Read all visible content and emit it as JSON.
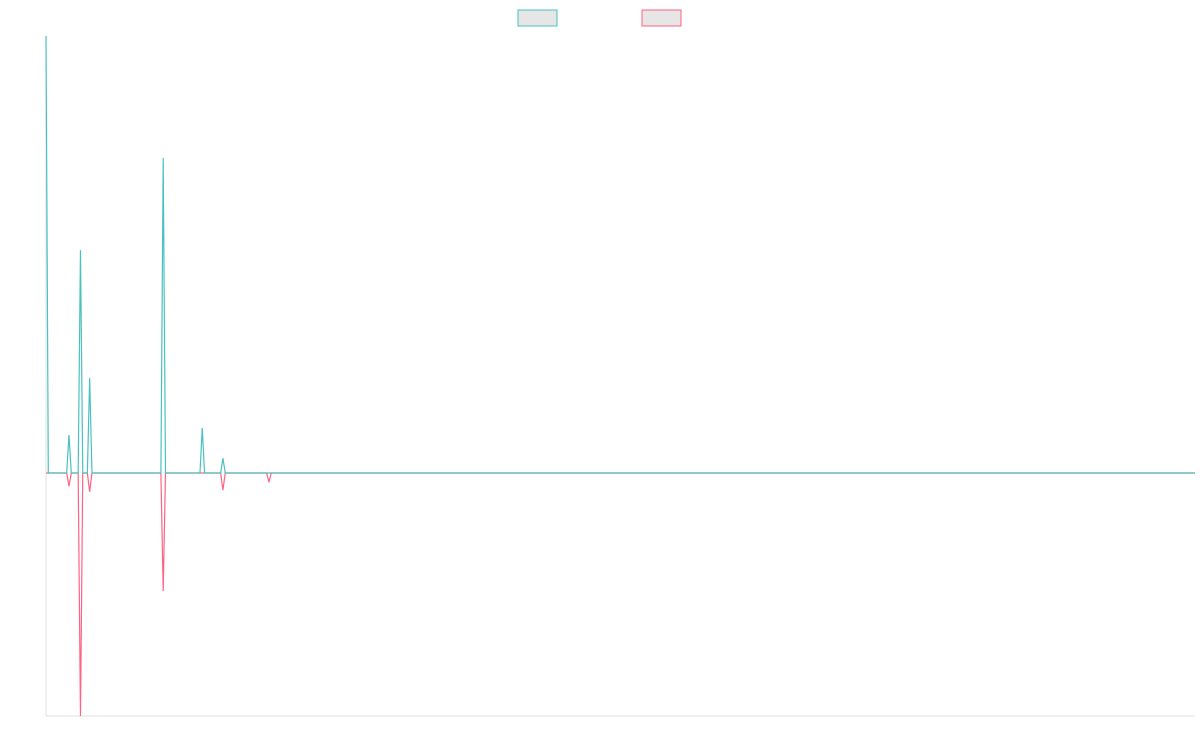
{
  "chart_data": {
    "type": "line",
    "legend": "top",
    "xlim": [
      0,
      500
    ],
    "ylim": [
      -55.6,
      100
    ],
    "series": [
      {
        "color": "#4bc0c0",
        "x": [
          0,
          1,
          9,
          10,
          11,
          14,
          15,
          16,
          18,
          19,
          20,
          50,
          51,
          52,
          67,
          68,
          69,
          76,
          77,
          78,
          500
        ],
        "values": [
          100,
          0,
          0,
          8.7,
          0,
          0,
          51,
          0,
          0,
          21.7,
          0,
          0,
          72.1,
          0,
          0,
          10.3,
          0,
          0,
          3.4,
          0,
          0
        ]
      },
      {
        "color": "#ff6384",
        "x": [
          0,
          9,
          10,
          11,
          14,
          15,
          16,
          18,
          19,
          20,
          50,
          51,
          52,
          76,
          77,
          78,
          96,
          97,
          98,
          500
        ],
        "values": [
          0,
          0,
          -3,
          0,
          0,
          -55.6,
          0,
          0,
          -4.3,
          0,
          0,
          -27,
          0,
          0,
          -3.9,
          0,
          0,
          -2.1,
          0,
          0
        ]
      }
    ]
  }
}
